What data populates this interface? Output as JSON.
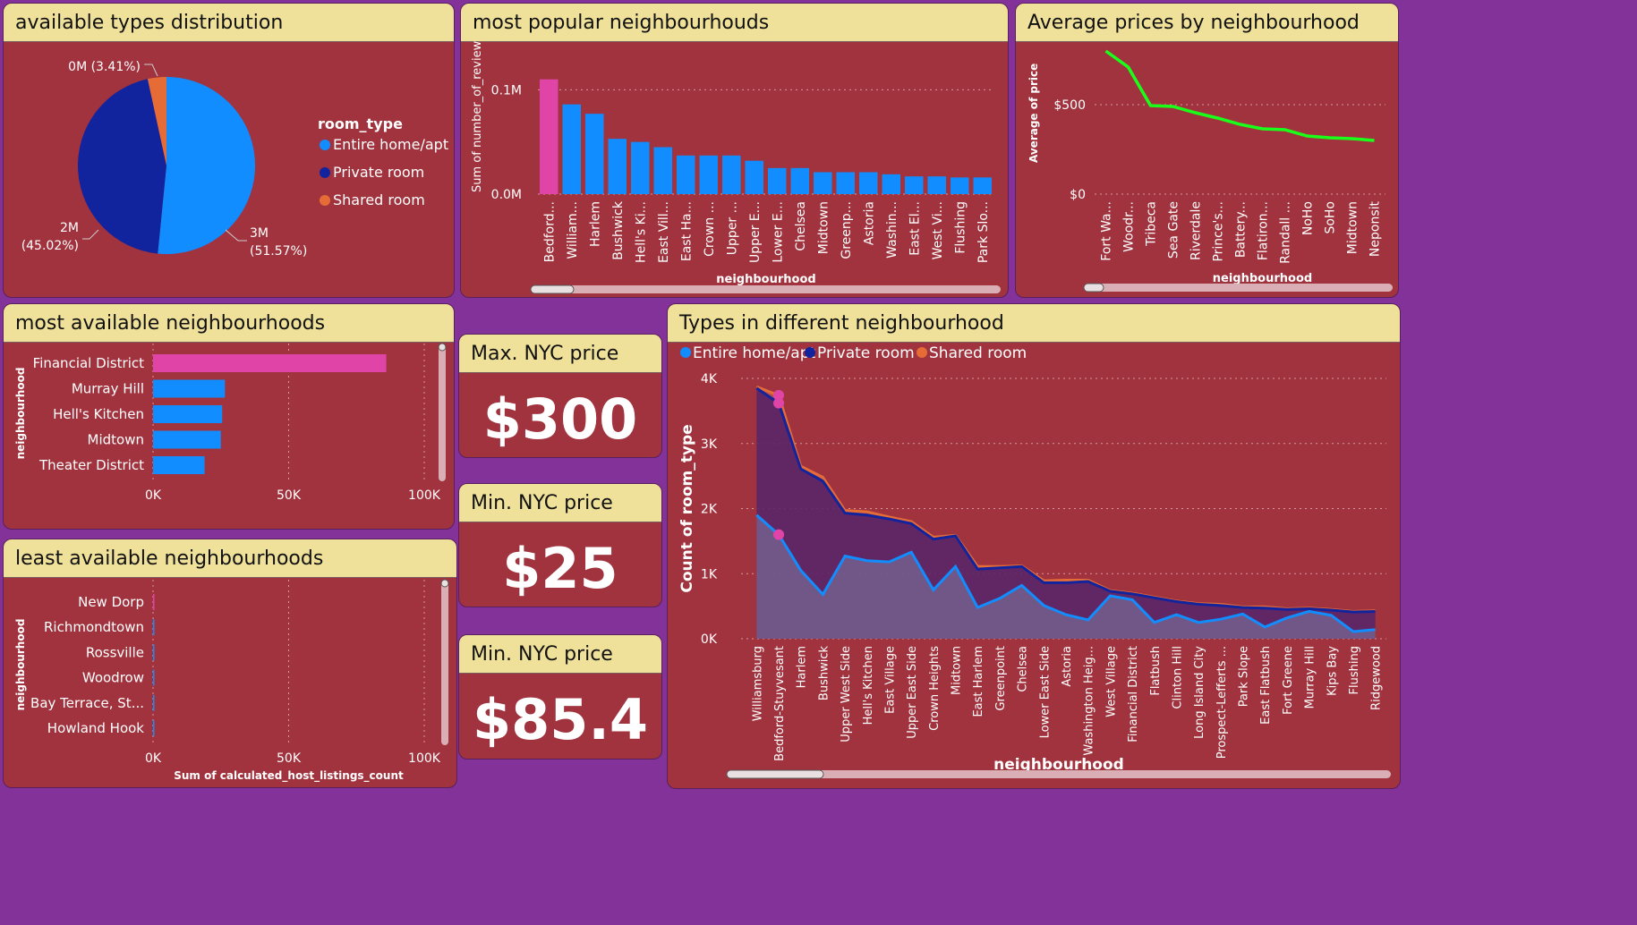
{
  "colors": {
    "blue": "#118dff",
    "navy": "#12239e",
    "orange": "#e66c37",
    "pink": "#e044a7",
    "green": "#1aff1a"
  },
  "panels": {
    "types_dist": {
      "title": "available types distribution"
    },
    "popular": {
      "title": "most popular neighbourhouds"
    },
    "avgprice": {
      "title": "Average prices by neighbourhood"
    },
    "most_avail": {
      "title": "most available neighbourhoods"
    },
    "least_avail": {
      "title": "least available neighbourhoods"
    },
    "types_neigh": {
      "title": "Types in different neighbourhood"
    }
  },
  "kpis": {
    "max": {
      "title": "Max. NYC price",
      "value": "$300"
    },
    "min": {
      "title": "Min. NYC price",
      "value": "$25"
    },
    "avg": {
      "title": "Min. NYC price",
      "value": "$85.4"
    }
  },
  "chart_data": [
    {
      "id": "pie",
      "type": "pie",
      "legend_title": "room_type",
      "legend_position": "right",
      "slices": [
        {
          "name": "Entire home/apt",
          "label_value": "3M",
          "label_pct": "(51.57%)",
          "pct": 51.57,
          "color": "#118dff"
        },
        {
          "name": "Private room",
          "label_value": "2M",
          "label_pct": "(45.02%)",
          "pct": 45.02,
          "color": "#12239e"
        },
        {
          "name": "Shared room",
          "label_value": "0M (3.41%)",
          "label_pct": "",
          "pct": 3.41,
          "color": "#e66c37"
        }
      ]
    },
    {
      "id": "popular",
      "type": "bar",
      "xlabel": "neighbourhood",
      "ylabel": "Sum of number_of_reviews",
      "ylim": [
        0,
        0.12
      ],
      "ytick_labels": [
        "0.0M",
        "0.1M"
      ],
      "yticks": [
        0,
        0.1
      ],
      "categories": [
        "Bedford...",
        "William...",
        "Harlem",
        "Bushwick",
        "Hell's Ki...",
        "East Vill...",
        "East Ha...",
        "Crown ...",
        "Upper ...",
        "Upper E...",
        "Lower E...",
        "Chelsea",
        "Midtown",
        "Greenp...",
        "Astoria",
        "Washin...",
        "East El...",
        "West Vi...",
        "Flushing",
        "Park Slo..."
      ],
      "values": [
        0.11,
        0.086,
        0.077,
        0.053,
        0.05,
        0.045,
        0.037,
        0.037,
        0.037,
        0.032,
        0.025,
        0.025,
        0.021,
        0.021,
        0.021,
        0.019,
        0.017,
        0.017,
        0.016,
        0.016
      ],
      "highlight_index": 0
    },
    {
      "id": "avgprice",
      "type": "line",
      "xlabel": "neighbourhood",
      "ylabel": "Average of price",
      "ylim": [
        0,
        800
      ],
      "ytick_labels": [
        "$0",
        "$500"
      ],
      "yticks": [
        0,
        500
      ],
      "categories": [
        "Fort Wa...",
        "Woodr...",
        "Tribeca",
        "Sea Gate",
        "Riverdale",
        "Prince's...",
        "Battery...",
        "Flatiron...",
        "Randall ...",
        "NoHo",
        "SoHo",
        "Midtown",
        "Neponsit"
      ],
      "values": [
        800,
        710,
        495,
        490,
        455,
        425,
        390,
        365,
        360,
        325,
        315,
        310,
        300
      ]
    },
    {
      "id": "most_avail",
      "type": "bar",
      "orientation": "horizontal",
      "ylabel": "neighbourhood",
      "xlim": [
        0,
        100000
      ],
      "xtick_labels": [
        "0K",
        "50K",
        "100K"
      ],
      "xticks": [
        0,
        50000,
        100000
      ],
      "categories": [
        "Financial District",
        "Murray Hill",
        "Hell's Kitchen",
        "Midtown",
        "Theater District"
      ],
      "values": [
        86000,
        26500,
        25500,
        25000,
        19000
      ],
      "highlight_index": 0
    },
    {
      "id": "least_avail",
      "type": "bar",
      "orientation": "horizontal",
      "ylabel": "neighbourhood",
      "xlabel": "Sum of calculated_host_listings_count",
      "xlim": [
        0,
        100000
      ],
      "xtick_labels": [
        "0K",
        "50K",
        "100K"
      ],
      "xticks": [
        0,
        50000,
        100000
      ],
      "categories": [
        "New Dorp",
        "Richmondtown",
        "Rossville",
        "Woodrow",
        "Bay Terrace, St...",
        "Howland Hook"
      ],
      "values": [
        1,
        1,
        1,
        1,
        1,
        1
      ],
      "highlight_index": 0
    },
    {
      "id": "types_neigh",
      "type": "area",
      "xlabel": "neighbourhood",
      "ylabel": "Count of room_type",
      "ylim": [
        0,
        4000
      ],
      "legend_position": "top-left",
      "ytick_labels": [
        "0K",
        "1K",
        "2K",
        "3K",
        "4K"
      ],
      "yticks": [
        0,
        1000,
        2000,
        3000,
        4000
      ],
      "categories": [
        "Williamsburg",
        "Bedford-Stuyvesant",
        "Harlem",
        "Bushwick",
        "Upper West Side",
        "Hell's Kitchen",
        "East Village",
        "Upper East Side",
        "Crown Heights",
        "Midtown",
        "East Harlem",
        "Greenpoint",
        "Chelsea",
        "Lower East Side",
        "Astoria",
        "Washington Heig...",
        "West Village",
        "Financial District",
        "Flatbush",
        "Clinton Hill",
        "Long Island City",
        "Prospect-Lefferts ...",
        "Park Slope",
        "East Flatbush",
        "Fort Greene",
        "Murray Hill",
        "Kips Bay",
        "Flushing",
        "Ridgewood"
      ],
      "series": [
        {
          "name": "Entire home/apt",
          "color": "#118dff",
          "values": [
            1900,
            1600,
            1050,
            680,
            1270,
            1200,
            1180,
            1330,
            750,
            1110,
            480,
            620,
            820,
            510,
            370,
            290,
            660,
            600,
            250,
            370,
            250,
            300,
            380,
            180,
            320,
            420,
            360,
            110,
            140
          ]
        },
        {
          "name": "Private room",
          "color": "#12239e",
          "values": [
            1950,
            2020,
            1560,
            1740,
            660,
            700,
            660,
            440,
            780,
            470,
            590,
            470,
            290,
            350,
            490,
            590,
            70,
            90,
            380,
            200,
            280,
            210,
            100,
            290,
            130,
            40,
            80,
            300,
            280
          ]
        },
        {
          "name": "Shared room",
          "color": "#e66c37",
          "values": [
            20,
            120,
            40,
            60,
            40,
            50,
            30,
            30,
            30,
            10,
            40,
            20,
            10,
            30,
            40,
            20,
            10,
            10,
            10,
            10,
            10,
            20,
            10,
            20,
            10,
            10,
            10,
            10,
            10
          ]
        }
      ]
    }
  ]
}
